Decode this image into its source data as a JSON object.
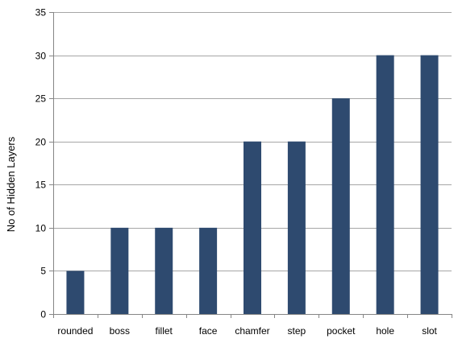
{
  "chart_data": {
    "type": "bar",
    "title": "",
    "xlabel": "",
    "ylabel": "No of Hidden Layers",
    "categories": [
      "rounded",
      "boss",
      "fillet",
      "face",
      "chamfer",
      "step",
      "pocket",
      "hole",
      "slot"
    ],
    "values": [
      5,
      10,
      10,
      10,
      20,
      20,
      25,
      30,
      30
    ],
    "ylim": [
      0,
      35
    ],
    "yticks": [
      0,
      5,
      10,
      15,
      20,
      25,
      30,
      35
    ],
    "grid": true,
    "legend": "none",
    "bar_color": "#2E4A6F",
    "grid_color": "#A6A6A6"
  }
}
